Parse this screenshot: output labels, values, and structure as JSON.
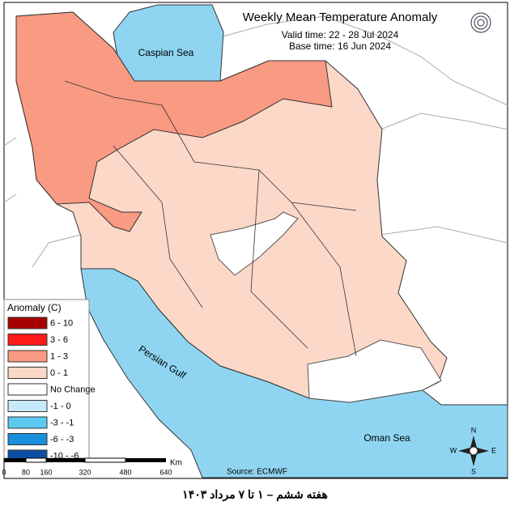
{
  "header": {
    "title": "Weekly Mean Temperature Anomaly",
    "valid_time": "Valid time: 22 - 28 Jul 2024",
    "base_time": "Base time: 16 Jun 2024"
  },
  "legend": {
    "title": "Anomaly (C)",
    "items": [
      {
        "label": "6 - 10",
        "color": "#a80000"
      },
      {
        "label": "3 - 6",
        "color": "#ff1a1a"
      },
      {
        "label": "1 - 3",
        "color": "#f99a82"
      },
      {
        "label": "0 - 1",
        "color": "#fcd8c8"
      },
      {
        "label": "No Change",
        "color": "#ffffff"
      },
      {
        "label": "-1 - 0",
        "color": "#c8e9fa"
      },
      {
        "label": "-3 - -1",
        "color": "#5cc9f0"
      },
      {
        "label": "-6 - -3",
        "color": "#1a8fdb"
      },
      {
        "label": "-10 - -6",
        "color": "#0a4fa3"
      }
    ]
  },
  "map_labels": {
    "caspian": "Caspian Sea",
    "gulf": "Persian Gulf",
    "oman": "Oman Sea"
  },
  "scale_bar": {
    "ticks": [
      "0",
      "80",
      "160",
      "320",
      "480",
      "640"
    ],
    "unit": "Km"
  },
  "compass": {
    "n": "N",
    "e": "E",
    "s": "S",
    "w": "W"
  },
  "source": "Source: ECMWF",
  "caption": "هفته ششم – ۱ تا ۷ مرداد ۱۴۰۳"
}
